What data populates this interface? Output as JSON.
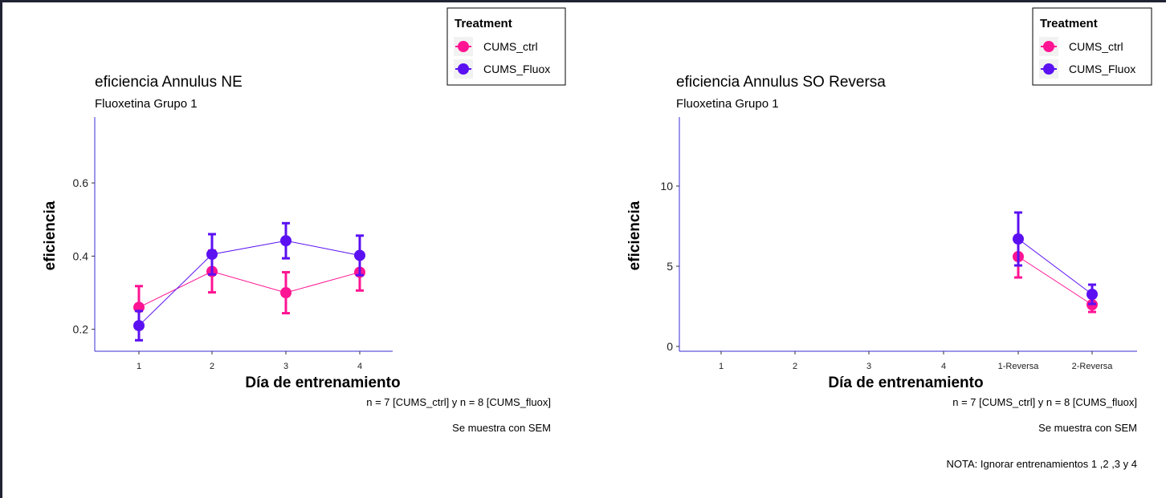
{
  "chart_data": [
    {
      "type": "line",
      "title": "eficiencia Annulus NE",
      "subtitle": "Fluoxetina Grupo 1",
      "xlabel": "Día de entrenamiento",
      "ylabel": "eficiencia",
      "categories": [
        "1",
        "2",
        "3",
        "4"
      ],
      "yticks": [
        "0.2",
        "0.4",
        "0.6"
      ],
      "ylim": [
        0.14,
        0.78
      ],
      "legend_title": "Treatment",
      "legend_position": "top-right",
      "grid": false,
      "series": [
        {
          "name": "CUMS_ctrl",
          "color": "#ff1493",
          "x": [
            "1",
            "2",
            "3",
            "4"
          ],
          "values": [
            0.26,
            0.358,
            0.3,
            0.356
          ],
          "sem": [
            0.058,
            0.057,
            0.056,
            0.05
          ]
        },
        {
          "name": "CUMS_Fluox",
          "color": "#5b10f2",
          "x": [
            "1",
            "2",
            "3",
            "4"
          ],
          "values": [
            0.21,
            0.405,
            0.442,
            0.402
          ],
          "sem": [
            0.04,
            0.055,
            0.048,
            0.054
          ]
        }
      ],
      "captions": [
        "n = 7  [CUMS_ctrl] y n = 8 [CUMS_fluox]",
        "Se muestra con SEM"
      ]
    },
    {
      "type": "line",
      "title": "eficiencia Annulus SO Reversa",
      "subtitle": "Fluoxetina Grupo 1",
      "xlabel": "Día de entrenamiento",
      "ylabel": "eficiencia",
      "categories": [
        "1",
        "2",
        "3",
        "4",
        "1-Reversa",
        "2-Reversa"
      ],
      "yticks": [
        "0",
        "5",
        "10"
      ],
      "ylim": [
        -0.3,
        14.3
      ],
      "legend_title": "Treatment",
      "legend_position": "top-right",
      "grid": false,
      "series": [
        {
          "name": "CUMS_ctrl",
          "color": "#ff1493",
          "x": [
            "1-Reversa",
            "2-Reversa"
          ],
          "values": [
            5.6,
            2.6
          ],
          "sem": [
            1.3,
            0.45
          ]
        },
        {
          "name": "CUMS_Fluox",
          "color": "#5b10f2",
          "x": [
            "1-Reversa",
            "2-Reversa"
          ],
          "values": [
            6.7,
            3.25
          ],
          "sem": [
            1.65,
            0.6
          ]
        }
      ],
      "captions": [
        "n = 7  [CUMS_ctrl] y n = 8 [CUMS_fluox]",
        "Se muestra con SEM",
        "NOTA: Ignorar entrenamientos 1 ,2 ,3 y 4"
      ]
    }
  ]
}
